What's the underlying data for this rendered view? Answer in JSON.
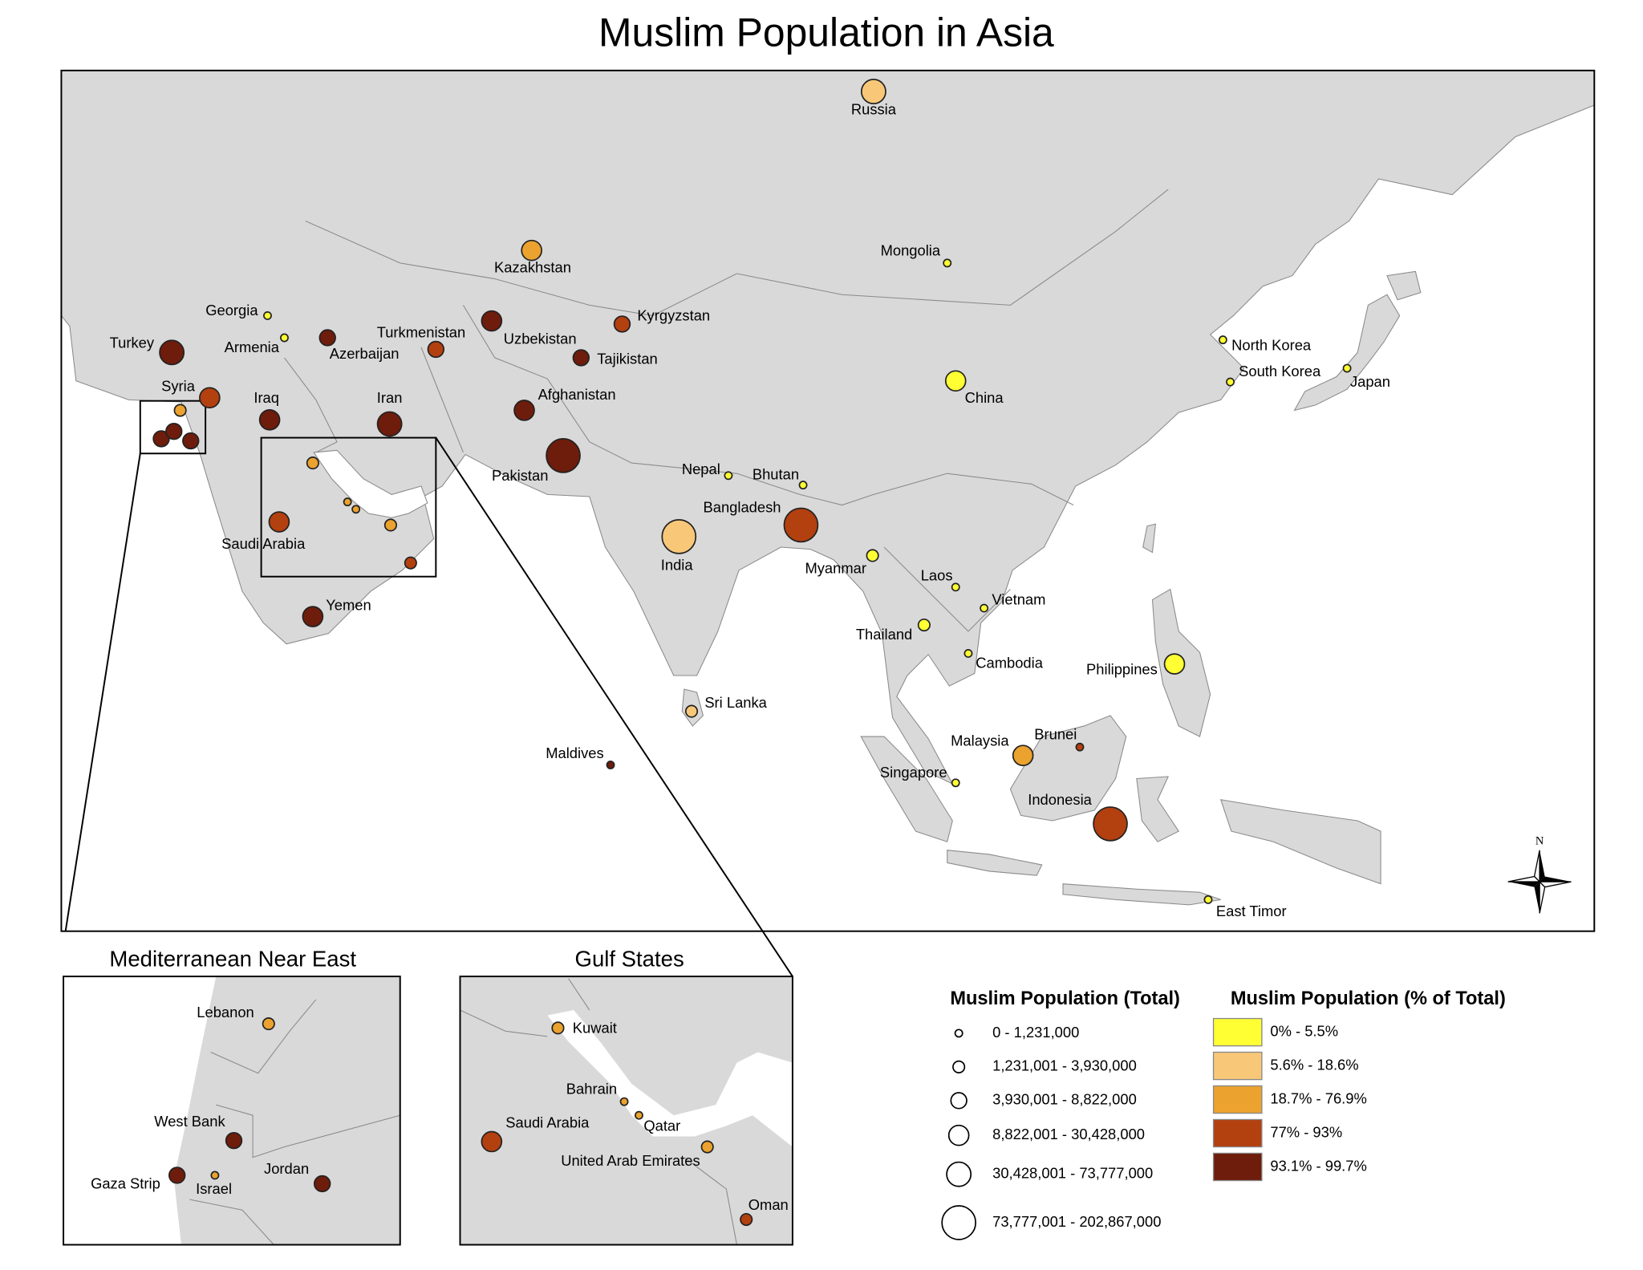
{
  "title": "Muslim Population in Asia",
  "map": {
    "labels": [
      "Russia",
      "Kazakhstan",
      "Mongolia",
      "Georgia",
      "Armenia",
      "Azerbaijan",
      "Turkmenistan",
      "Uzbekistan",
      "Kyrgyzstan",
      "Tajikistan",
      "Turkey",
      "Syria",
      "Iraq",
      "Iran",
      "Afghanistan",
      "Pakistan",
      "Saudi Arabia",
      "Yemen",
      "Nepal",
      "Bhutan",
      "Bangladesh",
      "India",
      "Myanmar",
      "Laos",
      "Vietnam",
      "Thailand",
      "Cambodia",
      "Philippines",
      "Sri Lanka",
      "Maldives",
      "Malaysia",
      "Brunei",
      "Singapore",
      "Indonesia",
      "China",
      "North Korea",
      "South Korea",
      "Japan",
      "East Timor"
    ]
  },
  "insets": [
    {
      "title": "Mediterranean Near East",
      "labels": [
        "Lebanon",
        "West Bank",
        "Jordan",
        "Gaza Strip",
        "Israel"
      ]
    },
    {
      "title": "Gulf States",
      "labels": [
        "Kuwait",
        "Bahrain",
        "Qatar",
        "Saudi Arabia",
        "United Arab Emirates",
        "Oman"
      ]
    }
  ],
  "legend_total": {
    "title": "Muslim Population (Total)",
    "entries": [
      "0 - 1,231,000",
      "1,231,001 - 3,930,000",
      "3,930,001 - 8,822,000",
      "8,822,001 - 30,428,000",
      "30,428,001 - 73,777,000",
      "73,777,001 - 202,867,000"
    ]
  },
  "legend_percent": {
    "title": "Muslim Population (% of Total)",
    "entries": [
      {
        "label": "0% - 5.5%",
        "color": "#ffff33"
      },
      {
        "label": "5.6% - 18.6%",
        "color": "#f8c878"
      },
      {
        "label": "18.7% - 76.9%",
        "color": "#eba22e"
      },
      {
        "label": "77% - 93%",
        "color": "#b3400f"
      },
      {
        "label": "93.1% - 99.7%",
        "color": "#6e1c0b"
      }
    ]
  },
  "compass": "N"
}
